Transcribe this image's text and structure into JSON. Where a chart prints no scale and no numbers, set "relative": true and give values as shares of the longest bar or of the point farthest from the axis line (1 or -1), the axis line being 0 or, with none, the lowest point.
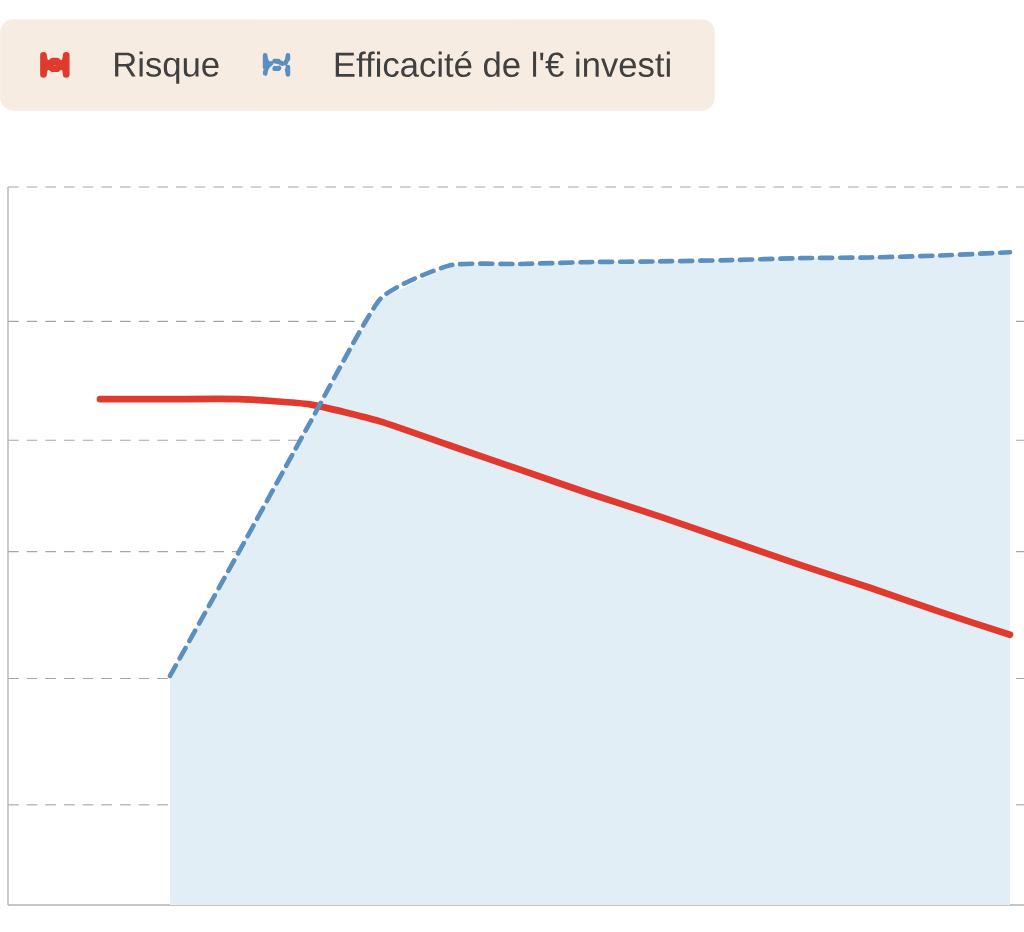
{
  "chart_data": {
    "type": "line",
    "relative": true,
    "categories": [
      null,
      null,
      null,
      null,
      null,
      null,
      null,
      null,
      null,
      null,
      null,
      null,
      null,
      null
    ],
    "series": [
      {
        "name": "Risque",
        "color": "#e03a2e",
        "line_style": "solid",
        "values": [
          0.775,
          0.775,
          0.775,
          0.767,
          0.741,
          0.704,
          0.667,
          0.63,
          0.595,
          0.558,
          0.521,
          0.486,
          0.449,
          0.414
        ]
      },
      {
        "name": "Efficacité de l'€ investi",
        "color": "#5b8fc0",
        "type": "area",
        "line_style": "dashed",
        "values": [
          null,
          0.351,
          0.544,
          0.739,
          0.928,
          0.98,
          0.982,
          0.985,
          0.986,
          0.988,
          0.991,
          0.992,
          0.995,
          1
        ]
      }
    ],
    "grid": "y",
    "legend": "top",
    "marker": "none"
  }
}
